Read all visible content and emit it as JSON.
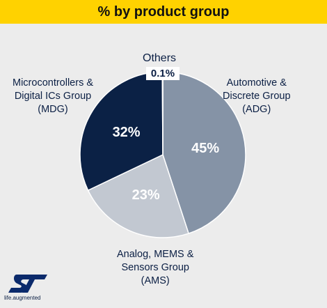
{
  "header": {
    "title": "% by product group"
  },
  "chart_data": {
    "type": "pie",
    "title": "% by product group",
    "slices": [
      {
        "name": "Automotive & Discrete Group (ADG)",
        "value": 45,
        "label": "45%",
        "color": "#8593a6"
      },
      {
        "name": "Analog, MEMS & Sensors Group (AMS)",
        "value": 23,
        "label": "23%",
        "color": "#c2c8d1"
      },
      {
        "name": "Microcontrollers & Digital ICs Group (MDG)",
        "value": 32,
        "label": "32%",
        "color": "#0b2145"
      },
      {
        "name": "Others",
        "value": 0.1,
        "label": "0.1%",
        "color": "#0b2145"
      }
    ]
  },
  "labels": {
    "adg": [
      "Automotive &",
      "Discrete Group",
      "(ADG)"
    ],
    "ams": [
      "Analog, MEMS &",
      "Sensors Group",
      "(AMS)"
    ],
    "mdg": [
      "Microcontrollers &",
      "Digital ICs Group",
      "(MDG)"
    ],
    "others_name": "Others",
    "others_pct": "0.1%"
  },
  "branding": {
    "logo": "st-logo",
    "tagline": "life.augmented"
  }
}
